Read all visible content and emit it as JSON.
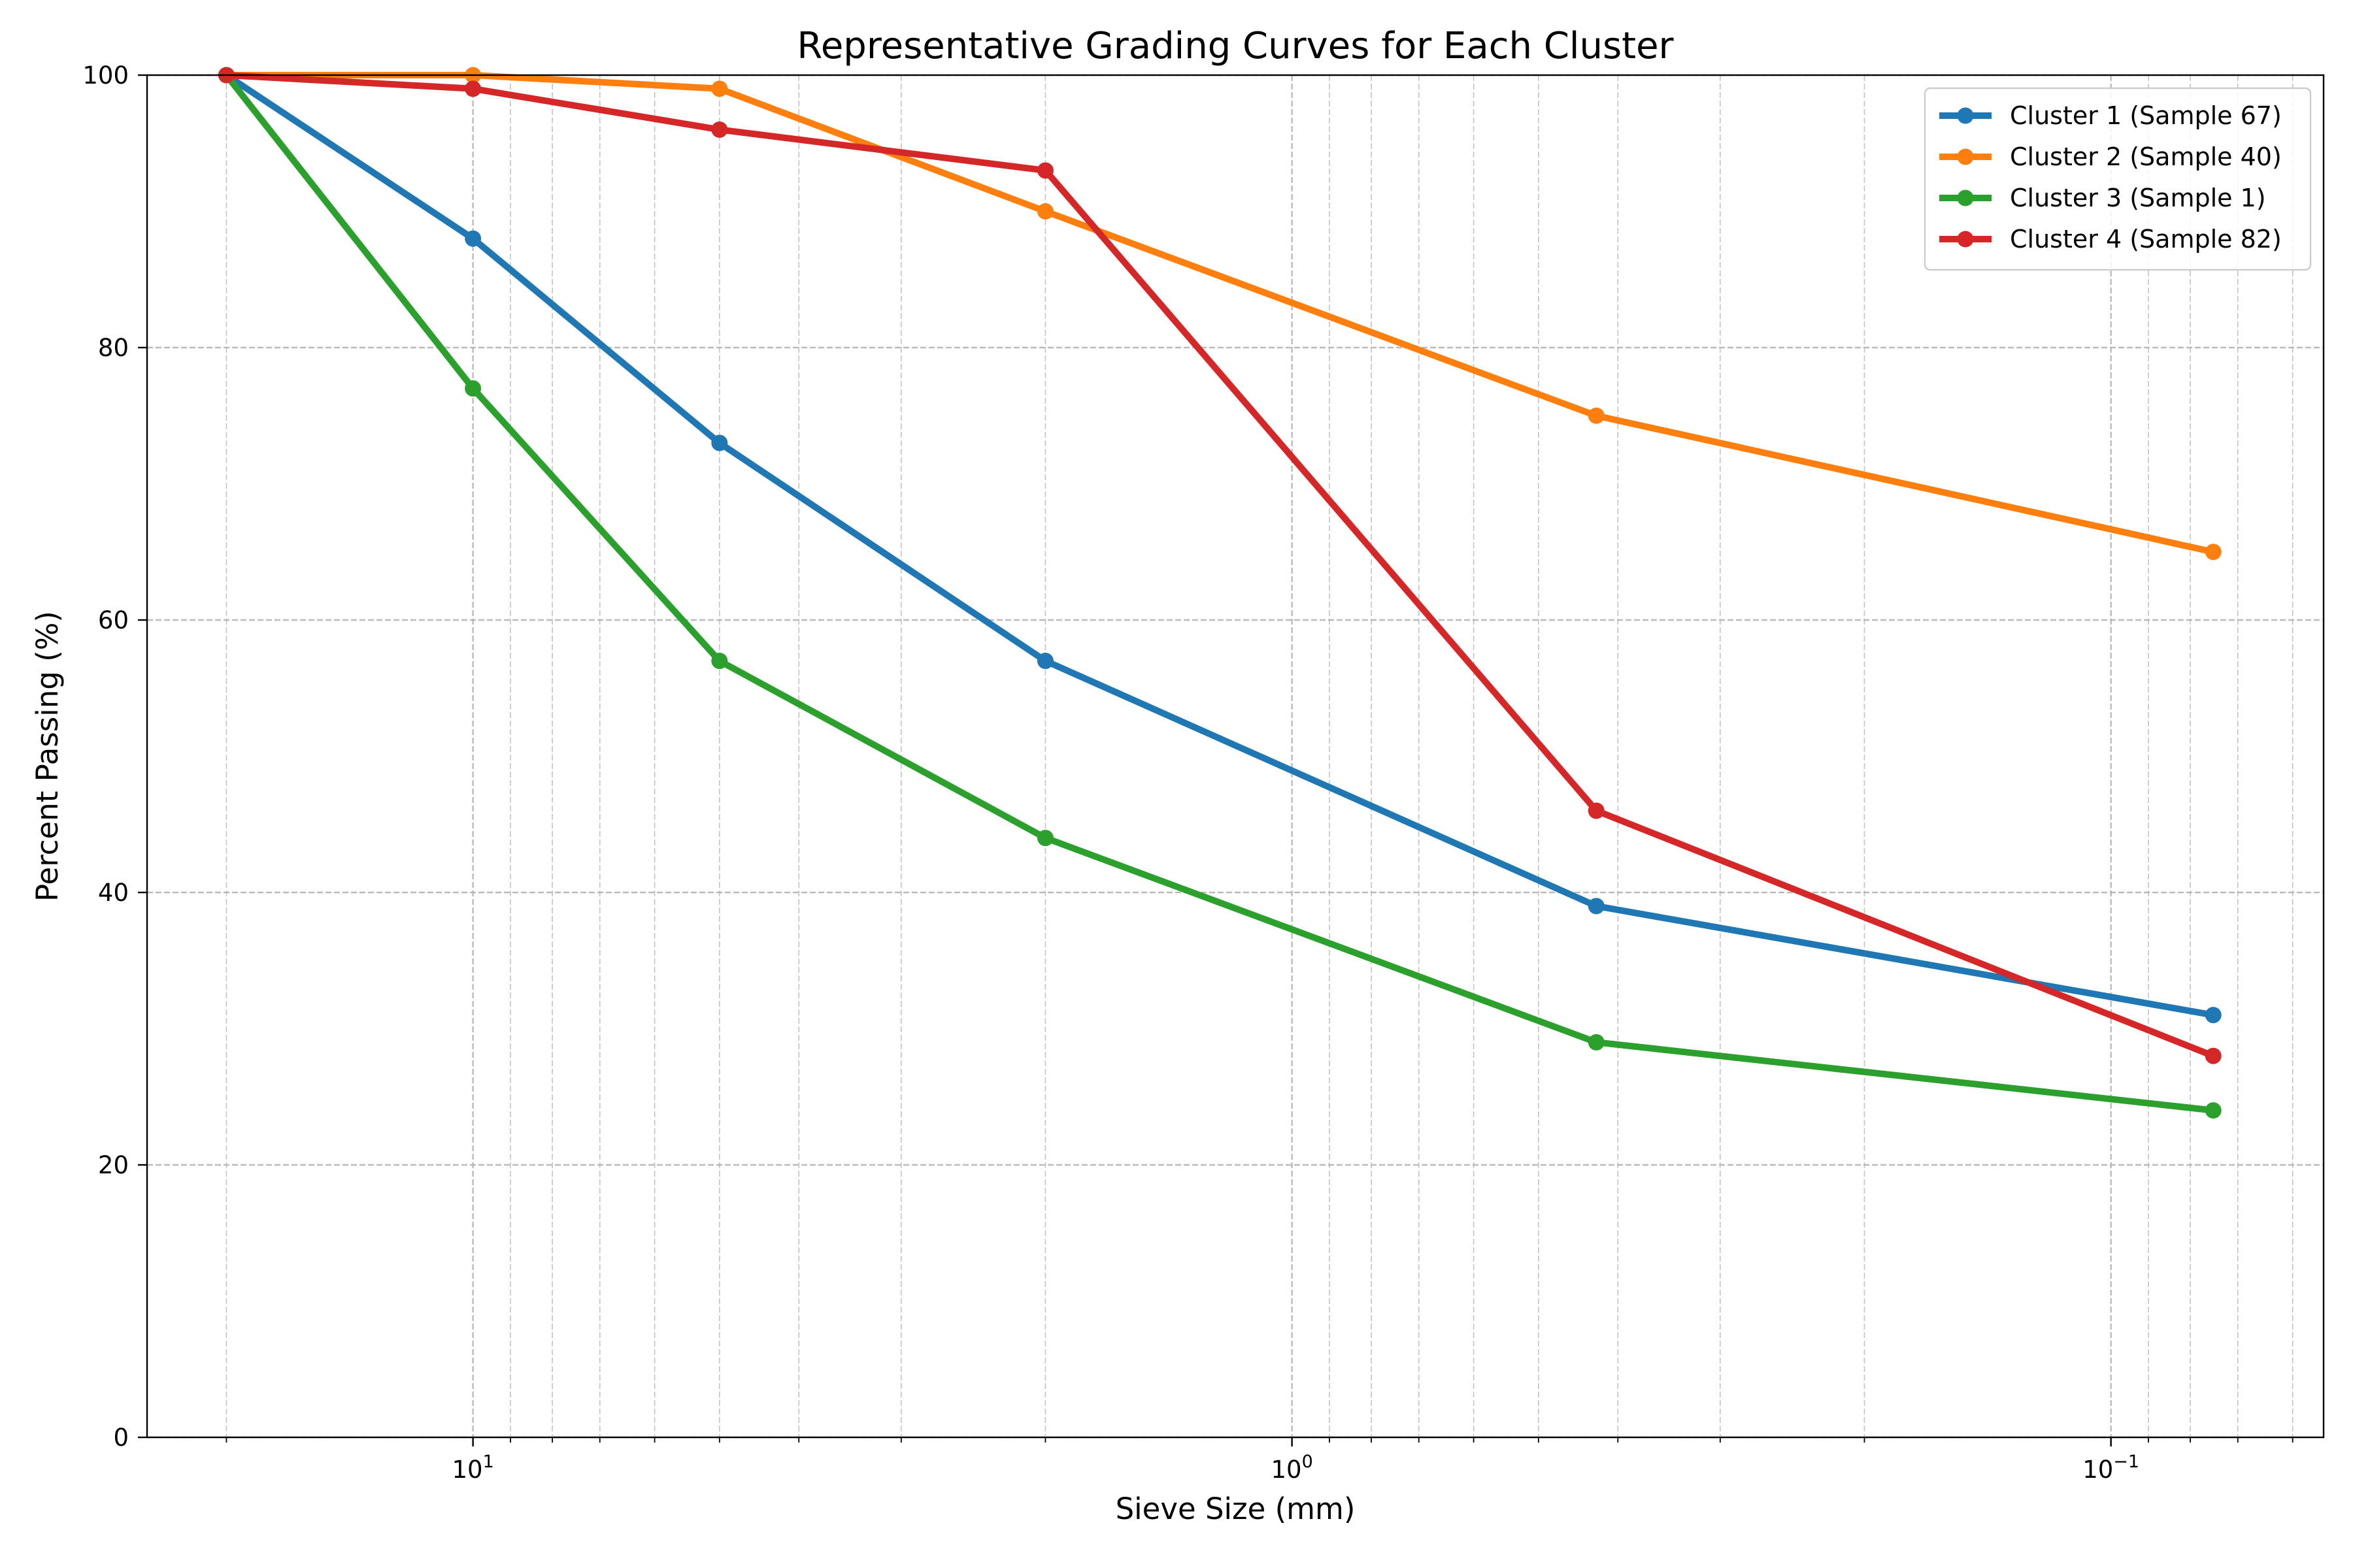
{
  "chart_data": {
    "type": "line",
    "title": "Representative Grading Curves for Each Cluster",
    "xlabel": "Sieve Size (mm)",
    "ylabel": "Percent Passing (%)",
    "x_scale": "log",
    "x_inverted": true,
    "xlim": [
      25,
      0.055
    ],
    "ylim": [
      0,
      100
    ],
    "x_ticks": [
      {
        "value": 10,
        "base": "10",
        "exp": "1"
      },
      {
        "value": 1,
        "base": "10",
        "exp": "0"
      },
      {
        "value": 0.1,
        "base": "10",
        "exp": "−1"
      }
    ],
    "y_ticks": [
      {
        "value": 0,
        "label": "0"
      },
      {
        "value": 20,
        "label": "20"
      },
      {
        "value": 40,
        "label": "40"
      },
      {
        "value": 60,
        "label": "60"
      },
      {
        "value": 80,
        "label": "80"
      },
      {
        "value": 100,
        "label": "100"
      }
    ],
    "grid": true,
    "legend_position": "top-right",
    "x": [
      20,
      10,
      5,
      2,
      0.425,
      0.075
    ],
    "series": [
      {
        "name": "Cluster 1 (Sample 67)",
        "color": "#1f77b4",
        "values": [
          100,
          88,
          73,
          57,
          39,
          31
        ]
      },
      {
        "name": "Cluster 2 (Sample 40)",
        "color": "#ff7f0e",
        "values": [
          100,
          100,
          99,
          90,
          75,
          65
        ]
      },
      {
        "name": "Cluster 3 (Sample 1)",
        "color": "#2ca02c",
        "values": [
          100,
          77,
          57,
          44,
          29,
          24
        ]
      },
      {
        "name": "Cluster 4 (Sample 82)",
        "color": "#d62728",
        "values": [
          100,
          99,
          96,
          93,
          46,
          28
        ]
      }
    ]
  }
}
